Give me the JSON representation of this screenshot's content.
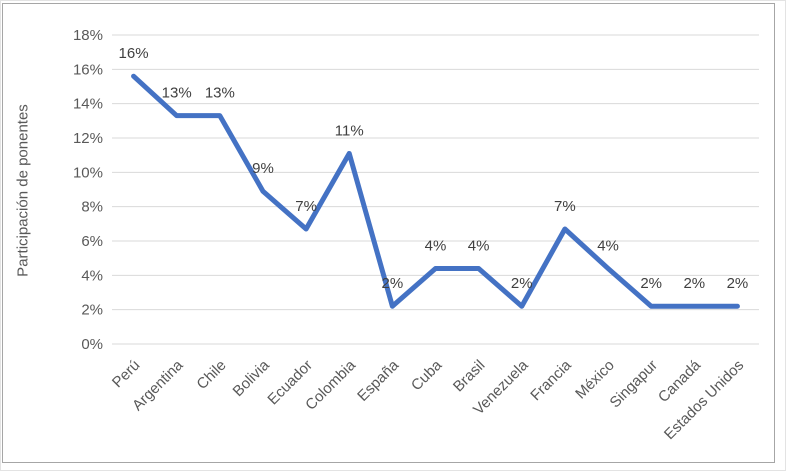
{
  "figure": {
    "background": "#ffffff",
    "frame_border_color": "#a6a6a6"
  },
  "chart_data": {
    "type": "line",
    "title": "",
    "xlabel": "",
    "ylabel": "Participación de ponentes",
    "categories": [
      "Perú",
      "Argentina",
      "Chile",
      "Bolivia",
      "Ecuador",
      "Colombia",
      "España",
      "Cuba",
      "Brasil",
      "Venezuela",
      "Francia",
      "México",
      "Singapur",
      "Canadá",
      "Estados Unidos"
    ],
    "values": [
      15.6,
      13.3,
      13.3,
      8.9,
      6.7,
      11.1,
      2.2,
      4.4,
      4.4,
      2.2,
      6.7,
      4.4,
      2.2,
      2.2,
      2.2
    ],
    "point_labels": [
      "16%",
      "13%",
      "13%",
      "9%",
      "7%",
      "11%",
      "2%",
      "4%",
      "4%",
      "2%",
      "7%",
      "4%",
      "2%",
      "2%",
      "2%"
    ],
    "ylim": [
      0,
      18
    ],
    "ytick_step": 2,
    "ytick_labels": [
      "0%",
      "2%",
      "4%",
      "6%",
      "8%",
      "10%",
      "12%",
      "14%",
      "16%",
      "18%"
    ],
    "grid": true,
    "legend": false,
    "x_label_rotation_deg": 45,
    "line_color": "#4472C4",
    "grid_color": "#d9d9d9",
    "axis_text_color": "#595959",
    "point_label_color": "#404040"
  }
}
